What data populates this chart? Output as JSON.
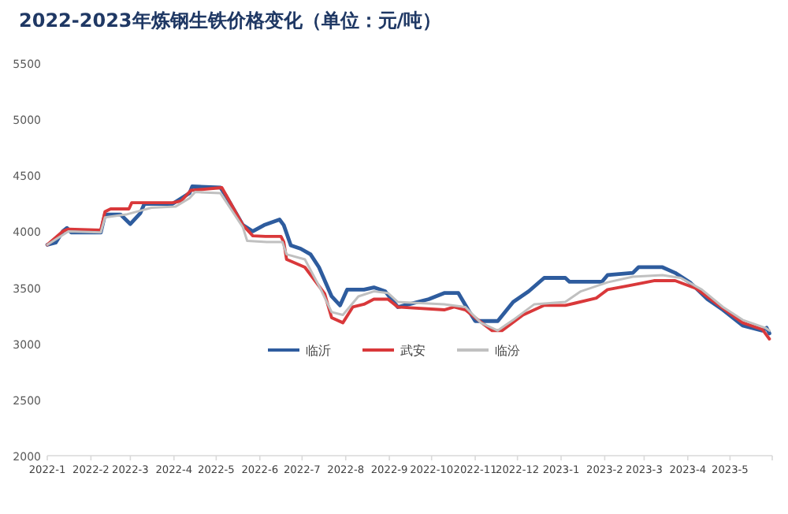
{
  "chart_data": {
    "type": "line",
    "title": "2022-2023年炼钢生铁价格变化（单位：元/吨）",
    "xlim": [
      "2022-01-01",
      "2023-05-31"
    ],
    "xticks": [
      {
        "value": "2022-01-01",
        "label": "2022-1"
      },
      {
        "value": "2022-02-01",
        "label": "2022-2"
      },
      {
        "value": "2022-03-01",
        "label": "2022-3"
      },
      {
        "value": "2022-04-01",
        "label": "2022-4"
      },
      {
        "value": "2022-05-01",
        "label": "2022-5"
      },
      {
        "value": "2022-06-01",
        "label": "2022-6"
      },
      {
        "value": "2022-07-01",
        "label": "2022-7"
      },
      {
        "value": "2022-08-01",
        "label": "2022-8"
      },
      {
        "value": "2022-09-01",
        "label": "2022-9"
      },
      {
        "value": "2022-10-01",
        "label": "2022-10"
      },
      {
        "value": "2022-11-01",
        "label": "2022-11"
      },
      {
        "value": "2022-12-01",
        "label": "2022-12"
      },
      {
        "value": "2023-01-01",
        "label": "2023-1"
      },
      {
        "value": "2023-02-01",
        "label": "2023-2"
      },
      {
        "value": "2023-03-01",
        "label": "2023-3"
      },
      {
        "value": "2023-04-01",
        "label": "2023-4"
      },
      {
        "value": "2023-05-01",
        "label": "2023-5"
      }
    ],
    "ylim": [
      2000,
      5500
    ],
    "yticks": [
      2000,
      2500,
      3000,
      3500,
      4000,
      4500,
      5000,
      5500
    ],
    "legend": "bottom",
    "series": [
      {
        "name": "临沂",
        "color": "#2e5c9e",
        "x": [
          "2022-01-01",
          "2022-01-07",
          "2022-01-12",
          "2022-01-15",
          "2022-01-18",
          "2022-02-08",
          "2022-02-11",
          "2022-02-22",
          "2022-03-01",
          "2022-03-08",
          "2022-03-11",
          "2022-03-31",
          "2022-04-12",
          "2022-04-14",
          "2022-05-04",
          "2022-05-08",
          "2022-05-20",
          "2022-05-27",
          "2022-06-04",
          "2022-06-15",
          "2022-06-18",
          "2022-06-23",
          "2022-06-30",
          "2022-07-07",
          "2022-07-13",
          "2022-07-22",
          "2022-07-28",
          "2022-08-02",
          "2022-08-14",
          "2022-08-21",
          "2022-08-29",
          "2022-09-07",
          "2022-09-29",
          "2022-10-10",
          "2022-10-20",
          "2022-10-27",
          "2022-11-01",
          "2022-11-17",
          "2022-11-28",
          "2022-12-09",
          "2022-12-20",
          "2023-01-04",
          "2023-01-07",
          "2023-01-30",
          "2023-02-03",
          "2023-02-21",
          "2023-02-25",
          "2023-03-14",
          "2023-03-23",
          "2023-04-03",
          "2023-04-15",
          "2023-04-26",
          "2023-05-10",
          "2023-05-24",
          "2023-05-27",
          "2023-05-29"
        ],
        "values": [
          3880,
          3900,
          4000,
          4030,
          3990,
          3990,
          4150,
          4150,
          4065,
          4160,
          4245,
          4245,
          4340,
          4400,
          4390,
          4315,
          4055,
          4000,
          4055,
          4105,
          4055,
          3875,
          3845,
          3795,
          3680,
          3420,
          3340,
          3480,
          3480,
          3500,
          3465,
          3325,
          3395,
          3450,
          3450,
          3300,
          3200,
          3200,
          3370,
          3465,
          3585,
          3585,
          3550,
          3550,
          3610,
          3630,
          3680,
          3680,
          3630,
          3540,
          3395,
          3300,
          3160,
          3115,
          3140,
          3090
        ]
      },
      {
        "name": "武安",
        "color": "#d9383a",
        "x": [
          "2022-01-01",
          "2022-01-12",
          "2022-01-16",
          "2022-02-08",
          "2022-02-11",
          "2022-02-15",
          "2022-02-28",
          "2022-03-02",
          "2022-03-31",
          "2022-04-06",
          "2022-04-13",
          "2022-05-05",
          "2022-05-20",
          "2022-05-27",
          "2022-06-05",
          "2022-06-16",
          "2022-06-18",
          "2022-06-20",
          "2022-07-03",
          "2022-07-17",
          "2022-07-22",
          "2022-07-30",
          "2022-08-06",
          "2022-08-14",
          "2022-08-21",
          "2022-08-31",
          "2022-09-07",
          "2022-10-10",
          "2022-10-17",
          "2022-10-25",
          "2022-11-01",
          "2022-11-13",
          "2022-11-20",
          "2022-12-05",
          "2022-12-20",
          "2023-01-04",
          "2023-01-11",
          "2023-01-26",
          "2023-02-03",
          "2023-02-18",
          "2023-03-08",
          "2023-03-23",
          "2023-04-07",
          "2023-04-22",
          "2023-05-10",
          "2023-05-24",
          "2023-05-29"
        ],
        "values": [
          3880,
          4000,
          4020,
          4010,
          4175,
          4200,
          4200,
          4255,
          4255,
          4270,
          4365,
          4390,
          4055,
          3960,
          3955,
          3955,
          3905,
          3750,
          3680,
          3445,
          3230,
          3185,
          3325,
          3350,
          3395,
          3395,
          3325,
          3300,
          3325,
          3300,
          3230,
          3115,
          3115,
          3255,
          3340,
          3340,
          3360,
          3405,
          3480,
          3515,
          3560,
          3560,
          3490,
          3350,
          3185,
          3125,
          3040
        ]
      },
      {
        "name": "临汾",
        "color": "#c0c0c0",
        "x": [
          "2022-01-01",
          "2022-01-16",
          "2022-02-08",
          "2022-02-11",
          "2022-02-26",
          "2022-03-10",
          "2022-03-16",
          "2022-04-02",
          "2022-04-12",
          "2022-04-16",
          "2022-05-04",
          "2022-05-20",
          "2022-05-23",
          "2022-06-06",
          "2022-06-17",
          "2022-06-20",
          "2022-07-03",
          "2022-07-14",
          "2022-07-22",
          "2022-07-30",
          "2022-08-10",
          "2022-08-21",
          "2022-08-31",
          "2022-09-07",
          "2022-10-10",
          "2022-10-25",
          "2022-11-05",
          "2022-11-17",
          "2022-11-28",
          "2022-12-13",
          "2023-01-04",
          "2023-01-15",
          "2023-02-03",
          "2023-02-21",
          "2023-03-14",
          "2023-03-27",
          "2023-04-11",
          "2023-04-26",
          "2023-05-10",
          "2023-05-26",
          "2023-05-29"
        ],
        "values": [
          3880,
          4000,
          3990,
          4125,
          4150,
          4190,
          4210,
          4220,
          4295,
          4350,
          4340,
          4035,
          3915,
          3905,
          3905,
          3795,
          3750,
          3490,
          3280,
          3255,
          3420,
          3465,
          3450,
          3370,
          3350,
          3325,
          3185,
          3115,
          3210,
          3350,
          3370,
          3465,
          3545,
          3595,
          3610,
          3585,
          3480,
          3325,
          3210,
          3140,
          3115
        ]
      }
    ]
  }
}
